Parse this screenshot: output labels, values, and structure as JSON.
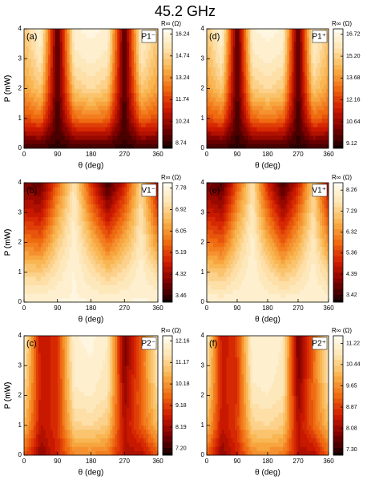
{
  "title": "45.2 GHz",
  "chart_data": [
    {
      "type": "contour",
      "panel_label": "(a)",
      "annotation": "P1⁻",
      "xlabel": "θ (deg)",
      "ylabel": "P (mW)",
      "colorbar_label": "R∞ (Ω)",
      "x": [
        0,
        45,
        90,
        135,
        180,
        225,
        270,
        315,
        360
      ],
      "y": [
        0,
        1,
        2,
        3,
        4
      ],
      "z": [
        [
          8.8,
          8.8,
          8.8,
          8.8,
          8.8,
          8.8,
          8.8,
          8.8,
          8.8
        ],
        [
          12,
          12.5,
          9,
          12.5,
          12.8,
          12.5,
          9,
          12.5,
          12
        ],
        [
          13.5,
          14.5,
          9,
          14.5,
          15,
          14.5,
          9,
          14.5,
          13.5
        ],
        [
          14,
          15.5,
          9,
          15.5,
          15.8,
          15.5,
          9,
          15.5,
          14
        ],
        [
          14.5,
          16.2,
          9,
          16,
          16.2,
          16,
          9,
          16,
          14.5
        ]
      ],
      "xlim": [
        0,
        360
      ],
      "ylim": [
        0,
        4
      ],
      "xticks": [
        0,
        90,
        180,
        270,
        360
      ],
      "yticks": [
        0,
        1,
        2,
        3,
        4
      ],
      "zlim": [
        8.4,
        16.6
      ],
      "zticks": [
        8.74,
        10.24,
        11.74,
        13.24,
        14.74,
        16.24
      ]
    },
    {
      "type": "contour",
      "panel_label": "(b)",
      "annotation": "V1⁻",
      "xlabel": "θ (deg)",
      "ylabel": "P (mW)",
      "colorbar_label": "R∞ (Ω)",
      "x": [
        0,
        45,
        90,
        135,
        180,
        225,
        270,
        315,
        360
      ],
      "y": [
        0,
        1,
        2,
        3,
        4
      ],
      "z": [
        [
          7.7,
          7.7,
          7.7,
          7.7,
          7.7,
          7.7,
          7.7,
          7.7,
          7.7
        ],
        [
          6.9,
          6.8,
          7.3,
          7.7,
          7.2,
          6.8,
          7.1,
          7.6,
          7.0
        ],
        [
          5.8,
          5.6,
          6.8,
          7.6,
          6.6,
          5.6,
          6.4,
          7.4,
          6.0
        ],
        [
          4.8,
          4.6,
          6.2,
          7.5,
          5.8,
          4.5,
          5.6,
          7.2,
          5.2
        ],
        [
          4.0,
          3.8,
          5.5,
          7.3,
          5.0,
          3.5,
          4.8,
          7.0,
          4.5
        ]
      ],
      "xlim": [
        0,
        360
      ],
      "ylim": [
        0,
        4
      ],
      "xticks": [
        0,
        90,
        180,
        270,
        360
      ],
      "yticks": [
        0,
        1,
        2,
        3,
        4
      ],
      "zlim": [
        3.2,
        8.0
      ],
      "zticks": [
        3.46,
        4.32,
        5.19,
        6.05,
        6.92,
        7.78
      ]
    },
    {
      "type": "contour",
      "panel_label": "(c)",
      "annotation": "P2⁻",
      "xlabel": "θ (deg)",
      "ylabel": "P (mW)",
      "colorbar_label": "R∞ (Ω)",
      "x": [
        0,
        45,
        90,
        135,
        180,
        225,
        270,
        315,
        360
      ],
      "y": [
        0,
        1,
        2,
        3,
        4
      ],
      "z": [
        [
          9.5,
          8.0,
          8.8,
          10,
          10,
          9.8,
          8.5,
          8.3,
          9.5
        ],
        [
          10.8,
          8.5,
          9.0,
          11.2,
          11.3,
          11.0,
          8.4,
          9.5,
          10.8
        ],
        [
          11.3,
          8.6,
          8.9,
          11.7,
          11.8,
          11.5,
          8.1,
          9.6,
          11.3
        ],
        [
          11.6,
          8.6,
          8.9,
          11.9,
          12.0,
          11.7,
          7.9,
          9.6,
          11.6
        ],
        [
          11.8,
          8.5,
          9.0,
          12.0,
          12.1,
          11.8,
          7.8,
          9.5,
          11.8
        ]
      ],
      "xlim": [
        0,
        360
      ],
      "ylim": [
        0,
        4
      ],
      "xticks": [
        0,
        90,
        180,
        270,
        360
      ],
      "yticks": [
        0,
        1,
        2,
        3,
        4
      ],
      "zlim": [
        6.9,
        12.4
      ],
      "zticks": [
        {
          "value": 7.2,
          "label": "7.20"
        },
        8.19,
        9.18,
        10.18,
        11.17,
        12.16
      ]
    },
    {
      "type": "contour",
      "panel_label": "(d)",
      "annotation": "P1⁺",
      "xlabel": "θ (deg)",
      "ylabel": "P (mW)",
      "colorbar_label": "R∞ (Ω)",
      "x": [
        0,
        45,
        90,
        135,
        180,
        225,
        270,
        315,
        360
      ],
      "y": [
        0,
        1,
        2,
        3,
        4
      ],
      "z": [
        [
          9.2,
          9.2,
          9.2,
          9.2,
          9.2,
          9.2,
          9.2,
          9.2,
          9.2
        ],
        [
          12.4,
          12.9,
          9.4,
          12.9,
          13.2,
          12.9,
          9.4,
          12.9,
          12.4
        ],
        [
          13.9,
          15.0,
          9.4,
          15.0,
          15.5,
          15.0,
          9.4,
          15.0,
          13.9
        ],
        [
          14.5,
          16.0,
          9.4,
          16.0,
          16.3,
          16.0,
          9.4,
          16.0,
          14.5
        ],
        [
          15.0,
          16.7,
          9.4,
          16.5,
          16.7,
          16.5,
          9.4,
          16.5,
          15.0
        ]
      ],
      "xlim": [
        0,
        360
      ],
      "ylim": [
        0,
        4
      ],
      "xticks": [
        0,
        90,
        180,
        270,
        360
      ],
      "yticks": [
        0,
        1,
        2,
        3,
        4
      ],
      "zlim": [
        8.8,
        17.1
      ],
      "zticks": [
        9.12,
        10.64,
        12.16,
        13.68,
        {
          "value": 15.2,
          "label": "15.20"
        },
        16.72
      ]
    },
    {
      "type": "contour",
      "panel_label": "(e)",
      "annotation": "V1⁺",
      "xlabel": "θ (deg)",
      "ylabel": "P (mW)",
      "colorbar_label": "R∞ (Ω)",
      "x": [
        0,
        45,
        90,
        135,
        180,
        225,
        270,
        315,
        360
      ],
      "y": [
        0,
        1,
        2,
        3,
        4
      ],
      "z": [
        [
          8.2,
          8.2,
          8.2,
          8.2,
          8.2,
          8.2,
          8.2,
          8.2,
          8.2
        ],
        [
          7.3,
          7.1,
          7.7,
          8.2,
          7.6,
          7.1,
          7.5,
          8.1,
          7.4
        ],
        [
          6.0,
          5.7,
          7.1,
          8.1,
          6.8,
          5.7,
          6.7,
          7.9,
          6.3
        ],
        [
          4.9,
          4.6,
          6.4,
          7.9,
          5.9,
          4.5,
          5.8,
          7.6,
          5.4
        ],
        [
          4.0,
          3.6,
          5.6,
          7.7,
          5.0,
          3.5,
          4.9,
          7.3,
          4.6
        ]
      ],
      "xlim": [
        0,
        360
      ],
      "ylim": [
        0,
        4
      ],
      "xticks": [
        0,
        90,
        180,
        270,
        360
      ],
      "yticks": [
        0,
        1,
        2,
        3,
        4
      ],
      "zlim": [
        3.1,
        8.6
      ],
      "zticks": [
        3.42,
        4.39,
        5.36,
        6.32,
        7.29,
        8.26
      ]
    },
    {
      "type": "contour",
      "panel_label": "(f)",
      "annotation": "P2⁺",
      "xlabel": "θ (deg)",
      "ylabel": "P (mW)",
      "colorbar_label": "R∞ (Ω)",
      "x": [
        0,
        45,
        90,
        135,
        180,
        225,
        270,
        315,
        360
      ],
      "y": [
        0,
        1,
        2,
        3,
        4
      ],
      "z": [
        [
          9.3,
          8.0,
          8.6,
          9.6,
          9.6,
          9.5,
          8.4,
          8.2,
          9.3
        ],
        [
          10.2,
          8.4,
          8.9,
          10.5,
          10.6,
          10.4,
          8.3,
          9.2,
          10.2
        ],
        [
          10.6,
          8.5,
          8.8,
          10.9,
          11.0,
          10.8,
          8.0,
          9.3,
          10.6
        ],
        [
          10.8,
          8.5,
          8.8,
          11.1,
          11.2,
          10.9,
          7.8,
          9.3,
          10.8
        ],
        [
          11.0,
          8.4,
          8.9,
          11.2,
          11.2,
          11.0,
          7.7,
          9.2,
          11.0
        ]
      ],
      "xlim": [
        0,
        360
      ],
      "ylim": [
        0,
        4
      ],
      "xticks": [
        0,
        90,
        180,
        270,
        360
      ],
      "yticks": [
        0,
        1,
        2,
        3,
        4
      ],
      "zlim": [
        7.1,
        11.5
      ],
      "zticks": [
        {
          "value": 7.3,
          "label": "7.30"
        },
        8.08,
        8.87,
        9.65,
        10.44,
        11.22
      ]
    }
  ],
  "colorscale": [
    "#120000",
    "#7a0000",
    "#d01a00",
    "#f06a10",
    "#f9b24a",
    "#fde3b0",
    "#fffdf2"
  ]
}
